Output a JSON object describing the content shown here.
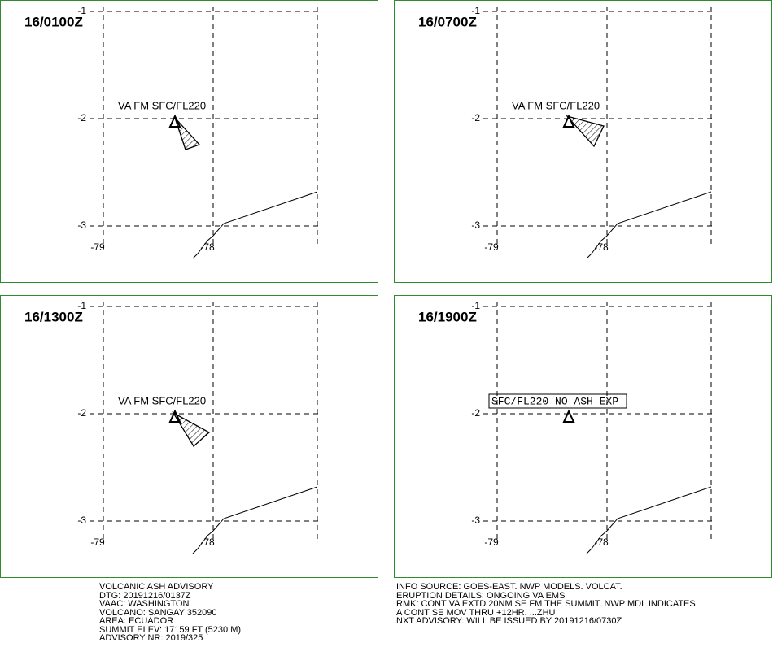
{
  "panels": [
    {
      "time": "16/0100Z",
      "label": "VA FM SFC/FL220"
    },
    {
      "time": "16/0700Z",
      "label": "VA FM SFC/FL220"
    },
    {
      "time": "16/1300Z",
      "label": "VA FM SFC/FL220"
    },
    {
      "time": "16/1900Z",
      "label": "SFC/FL220 NO ASH EXP"
    }
  ],
  "grid": {
    "lat": [
      "-1",
      "-2",
      "-3"
    ],
    "lon": [
      "-79",
      "-78"
    ]
  },
  "advisory_left": [
    "VOLCANIC ASH ADVISORY",
    "DTG: 20191216/0137Z",
    "VAAC: WASHINGTON",
    "VOLCANO: SANGAY 352090",
    "AREA: ECUADOR",
    "SUMMIT ELEV: 17159 FT (5230 M)",
    "ADVISORY NR: 2019/325"
  ],
  "advisory_right": [
    "INFO SOURCE: GOES-EAST. NWP MODELS. VOLCAT.",
    "ERUPTION DETAILS: ONGOING VA EMS",
    "RMK: CONT VA EXTD 20NM SE FM THE SUMMIT. NWP MDL INDICATES",
    "A CONT SE MOV THRU +12HR. ...ZHU",
    "NXT ADVISORY: WILL BE ISSUED BY 20191216/0730Z"
  ]
}
